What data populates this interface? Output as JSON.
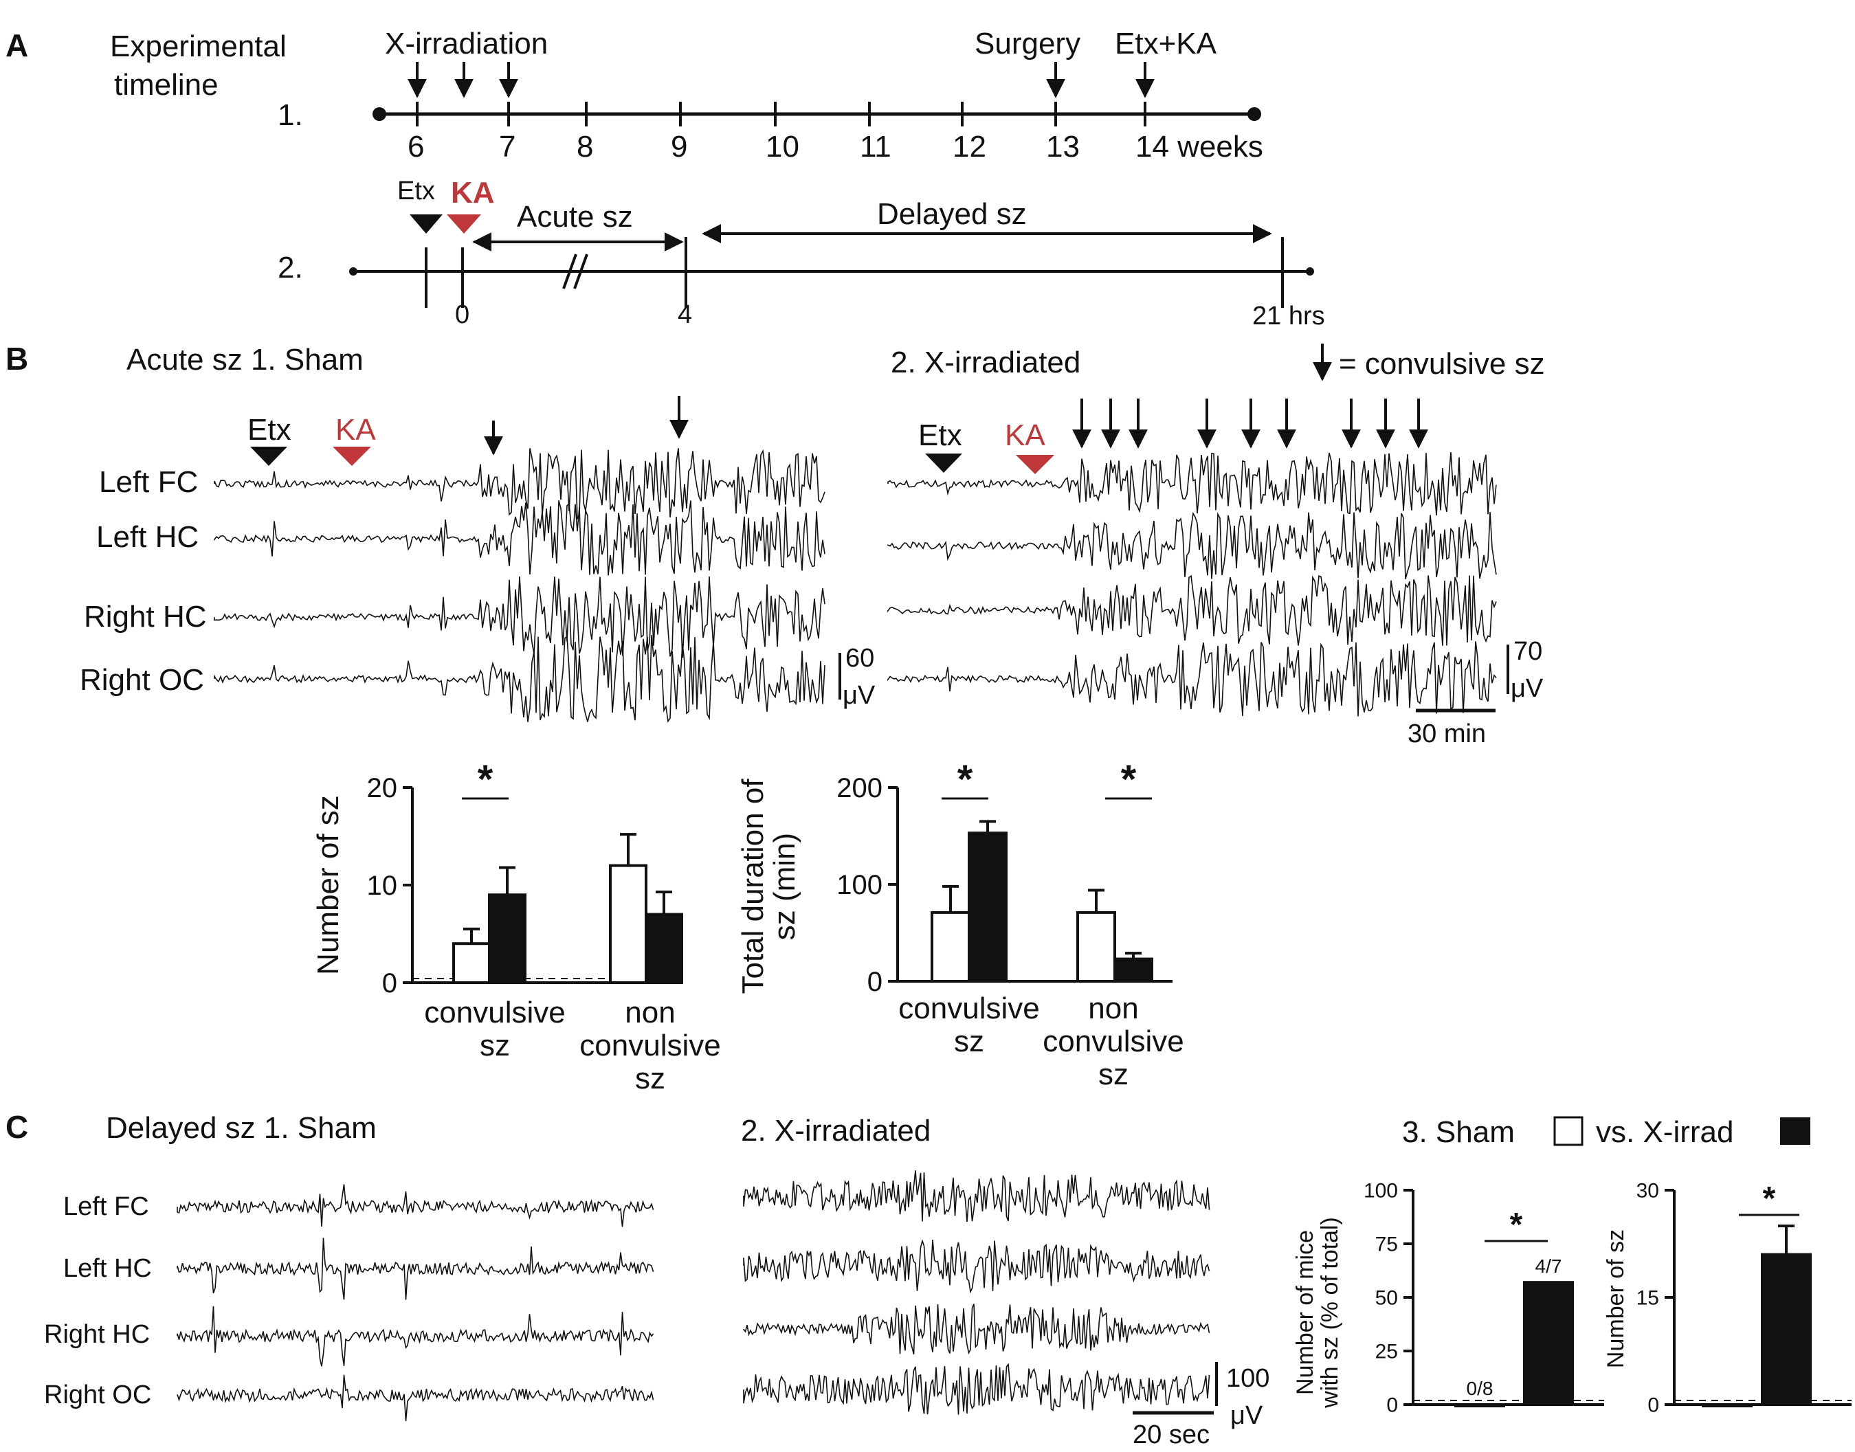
{
  "panels": {
    "a": "A",
    "b": "B",
    "c": "C"
  },
  "timeline1": {
    "box_title_1": "Experimental",
    "box_title_2": "timeline",
    "row_label": "1.",
    "xirr_label": "X-irradiation",
    "surgery_label": "Surgery",
    "etxka_label": "Etx+KA",
    "ticks": [
      "6",
      "7",
      "8",
      "9",
      "10",
      "11",
      "12",
      "13",
      "14 weeks"
    ]
  },
  "timeline2": {
    "row_label": "2.",
    "etx": "Etx",
    "ka": "KA",
    "acute": "Acute sz",
    "delayed": "Delayed sz",
    "t0": "0",
    "t4": "4",
    "t21": "21 hrs"
  },
  "colors": {
    "red": "#c0373a",
    "black": "#111111"
  },
  "b": {
    "sham_title": "Acute sz 1. Sham",
    "xirr_title": "2. X-irradiated",
    "legend": "= convulsive sz",
    "etx": "Etx",
    "ka": "KA",
    "channels": [
      "Left FC",
      "Left HC",
      "Right HC",
      "Right OC"
    ],
    "scale_sham_value": "60",
    "scale_sham_unit": "μV",
    "scale_xirr_value": "70",
    "scale_xirr_unit": "μV",
    "time_scale": "30 min",
    "star": "*"
  },
  "c": {
    "sham_title": "Delayed sz 1. Sham",
    "xirr_title": "2. X-irradiated",
    "compare_a": "3. Sham",
    "compare_b": "vs. X-irrad",
    "channels": [
      "Left FC",
      "Left HC",
      "Right HC",
      "Right OC"
    ],
    "scale_value": "100",
    "scale_unit": "μV",
    "time_scale": "20 sec",
    "star": "*"
  },
  "chart_data": [
    {
      "type": "bar",
      "ylabel": "Number of sz",
      "yticks": [
        "0",
        "10",
        "20"
      ],
      "ylim": [
        0,
        20
      ],
      "categories": [
        "convulsive sz",
        "non convulsive sz"
      ],
      "series": [
        {
          "name": "Sham",
          "values": [
            4,
            12
          ],
          "errors": [
            1.5,
            3.2
          ]
        },
        {
          "name": "X-irrad",
          "values": [
            9,
            7
          ],
          "errors": [
            2.8,
            2.3
          ]
        }
      ],
      "significant": [
        true,
        false
      ]
    },
    {
      "type": "bar",
      "ylabel": "Total duration of sz (min)",
      "yticks": [
        "0",
        "100",
        "200"
      ],
      "ylim": [
        0,
        200
      ],
      "categories": [
        "convulsive sz",
        "non convulsive sz"
      ],
      "series": [
        {
          "name": "Sham",
          "values": [
            71,
            71
          ],
          "errors": [
            27,
            23
          ]
        },
        {
          "name": "X-irrad",
          "values": [
            153,
            23
          ],
          "errors": [
            12,
            6
          ]
        }
      ],
      "significant": [
        true,
        true
      ]
    },
    {
      "type": "bar",
      "ylabel": "Number of mice with sz (% of total)",
      "yticks": [
        "0",
        "25",
        "50",
        "75",
        "100"
      ],
      "ylim": [
        0,
        100
      ],
      "categories": [
        "Sham",
        "X-irrad"
      ],
      "values": [
        0,
        57
      ],
      "bar_labels": [
        "0/8",
        "4/7"
      ],
      "significant": [
        true
      ]
    },
    {
      "type": "bar",
      "ylabel": "Number of sz",
      "yticks": [
        "0",
        "15",
        "30"
      ],
      "ylim": [
        0,
        30
      ],
      "categories": [
        "Sham",
        "X-irrad"
      ],
      "values": [
        0,
        21
      ],
      "errors": [
        0,
        4
      ],
      "significant": [
        true
      ]
    }
  ]
}
